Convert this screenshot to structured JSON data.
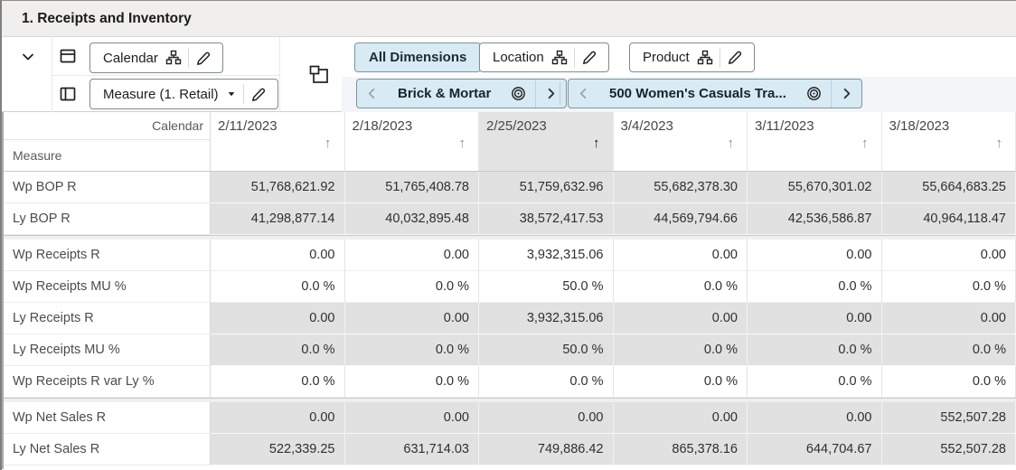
{
  "title": "1. Receipts and Inventory",
  "colors": {
    "accent_blue": "#d8eaf4",
    "shaded_cell": "#e1e1e1",
    "selected_column_header": "#e3e3e3"
  },
  "toolbar": {
    "row_axis": {
      "label": "Calendar"
    },
    "column_axis": {
      "label": "Measure (1. Retail)"
    },
    "dimension_tabs": [
      {
        "label": "All Dimensions",
        "selected": true
      },
      {
        "label": "Location",
        "selected": false
      },
      {
        "label": "Product",
        "selected": false
      }
    ],
    "page_tiles": [
      {
        "dimension": "Location",
        "label": "Brick & Mortar"
      },
      {
        "dimension": "Product",
        "label": "500 Women's Casuals Tra..."
      }
    ]
  },
  "grid": {
    "corner_top_label": "Calendar",
    "corner_bottom_label": "Measure",
    "sort_icon": "↑",
    "columns": [
      {
        "label": "2/11/2023",
        "sorted": false
      },
      {
        "label": "2/18/2023",
        "sorted": false
      },
      {
        "label": "2/25/2023",
        "sorted": true
      },
      {
        "label": "3/4/2023",
        "sorted": false
      },
      {
        "label": "3/11/2023",
        "sorted": false
      },
      {
        "label": "3/18/2023",
        "sorted": false
      }
    ],
    "separator_after_rows": [
      1,
      6
    ],
    "rows": [
      {
        "label": "Wp BOP R",
        "shaded": true,
        "values": [
          "51,768,621.92",
          "51,765,408.78",
          "51,759,632.96",
          "55,682,378.30",
          "55,670,301.02",
          "55,664,683.25"
        ]
      },
      {
        "label": "Ly BOP R",
        "shaded": true,
        "values": [
          "41,298,877.14",
          "40,032,895.48",
          "38,572,417.53",
          "44,569,794.66",
          "42,536,586.87",
          "40,964,118.47"
        ]
      },
      {
        "label": "Wp Receipts R",
        "shaded": false,
        "values": [
          "0.00",
          "0.00",
          "3,932,315.06",
          "0.00",
          "0.00",
          "0.00"
        ]
      },
      {
        "label": "Wp Receipts MU %",
        "shaded": false,
        "values": [
          "0.0 %",
          "0.0 %",
          "50.0 %",
          "0.0 %",
          "0.0 %",
          "0.0 %"
        ]
      },
      {
        "label": "Ly Receipts R",
        "shaded": true,
        "values": [
          "0.00",
          "0.00",
          "3,932,315.06",
          "0.00",
          "0.00",
          "0.00"
        ]
      },
      {
        "label": "Ly Receipts MU %",
        "shaded": true,
        "values": [
          "0.0 %",
          "0.0 %",
          "50.0 %",
          "0.0 %",
          "0.0 %",
          "0.0 %"
        ]
      },
      {
        "label": "Wp Receipts R var Ly %",
        "shaded": false,
        "values": [
          "0.0 %",
          "0.0 %",
          "0.0 %",
          "0.0 %",
          "0.0 %",
          "0.0 %"
        ]
      },
      {
        "label": "Wp Net Sales R",
        "shaded": true,
        "values": [
          "0.00",
          "0.00",
          "0.00",
          "0.00",
          "0.00",
          "552,507.28"
        ]
      },
      {
        "label": "Ly Net Sales R",
        "shaded": true,
        "values": [
          "522,339.25",
          "631,714.03",
          "749,886.42",
          "865,378.16",
          "644,704.67",
          "552,507.28"
        ]
      }
    ]
  }
}
